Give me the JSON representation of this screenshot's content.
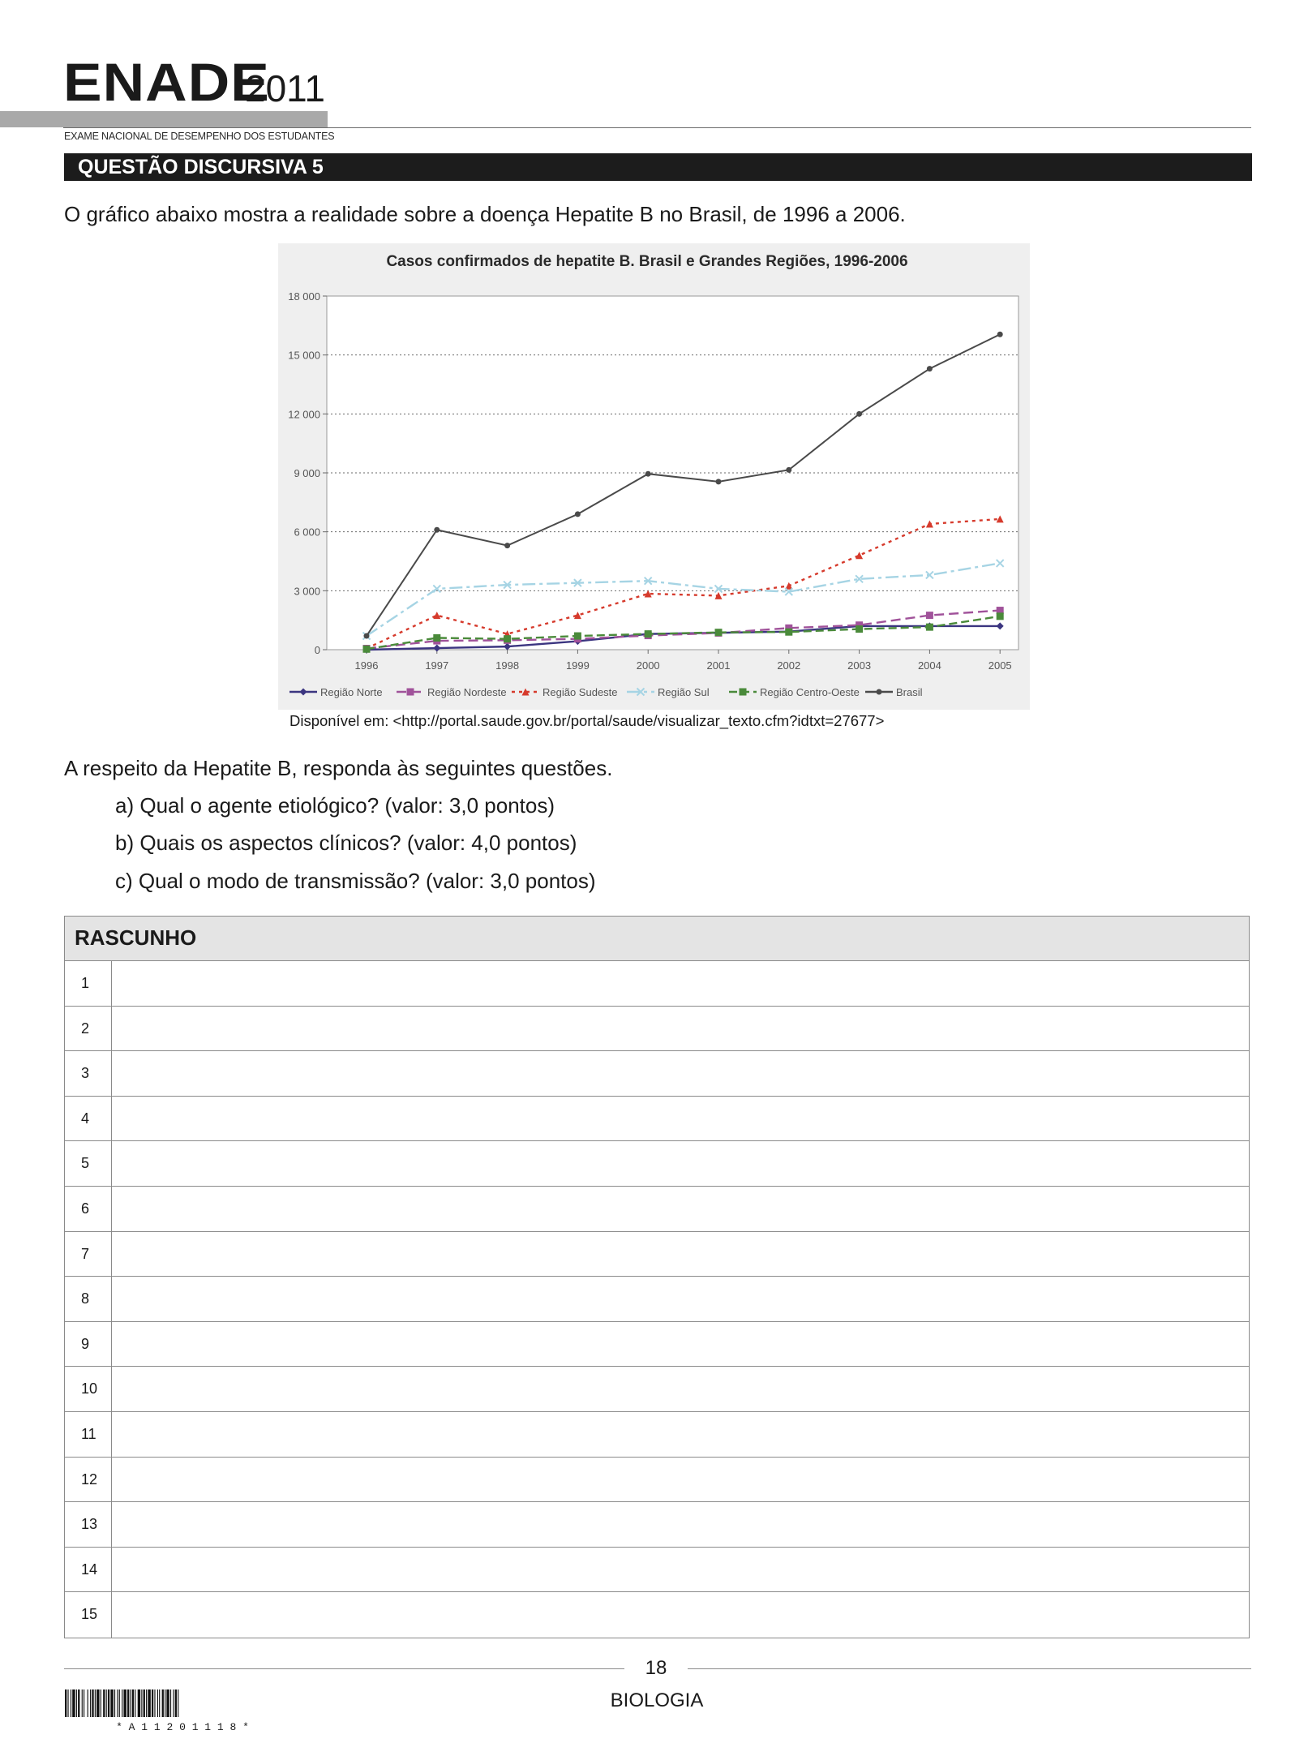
{
  "header": {
    "logo_word": "ENADE",
    "logo_year": "2011",
    "subtitle": "EXAME NACIONAL DE DESEMPENHO DOS ESTUDANTES",
    "question_title": "QUESTÃO DISCURSIVA 5"
  },
  "content": {
    "intro": "O gráfico abaixo mostra a realidade sobre a doença Hepatite B no Brasil, de 1996 a 2006.",
    "source": "Disponível em: <http://portal.saude.gov.br/portal/saude/visualizar_texto.cfm?idtxt=27677>",
    "prompt": "A respeito da Hepatite B, responda às seguintes questões.",
    "questions": [
      "a) Qual o agente etiológico? (valor: 3,0 pontos)",
      "b) Quais os aspectos clínicos? (valor: 4,0 pontos)",
      "c) Qual o modo de transmissão? (valor: 3,0 pontos)"
    ]
  },
  "chart_data": {
    "type": "line",
    "title": "Casos confirmados de hepatite B. Brasil e Grandes Regiões, 1996-2006",
    "xlabel": "",
    "ylabel": "",
    "categories": [
      "1996",
      "1997",
      "1998",
      "1999",
      "2000",
      "2001",
      "2002",
      "2003",
      "2004",
      "2005"
    ],
    "ylim": [
      0,
      18000
    ],
    "yticks": [
      0,
      3000,
      6000,
      9000,
      12000,
      15000,
      18000
    ],
    "ytick_labels": [
      "0",
      "3 000",
      "6 000",
      "9 000",
      "12 000",
      "15 000",
      "18 000"
    ],
    "grid": true,
    "legend_position": "bottom",
    "series": [
      {
        "name": "Região Norte",
        "color": "#3b3580",
        "dash": "",
        "marker": "diamond",
        "values": [
          0,
          80,
          160,
          430,
          800,
          860,
          920,
          1200,
          1200,
          1200
        ]
      },
      {
        "name": "Região Nordeste",
        "color": "#a0529a",
        "dash": "12,6",
        "marker": "square",
        "values": [
          60,
          450,
          480,
          550,
          720,
          850,
          1100,
          1250,
          1750,
          2000
        ]
      },
      {
        "name": "Região Sudeste",
        "color": "#d63a2c",
        "dash": "4,5",
        "marker": "triangle",
        "values": [
          60,
          1750,
          800,
          1750,
          2850,
          2750,
          3250,
          4800,
          6400,
          6650
        ]
      },
      {
        "name": "Região Sul",
        "color": "#a6d4e4",
        "dash": "16,5,4,5",
        "marker": "x",
        "values": [
          700,
          3100,
          3300,
          3400,
          3500,
          3100,
          2950,
          3600,
          3800,
          4400
        ]
      },
      {
        "name": "Região Centro-Oeste",
        "color": "#4a8a3a",
        "dash": "10,5",
        "marker": "square",
        "values": [
          30,
          600,
          550,
          700,
          800,
          880,
          900,
          1050,
          1150,
          1700
        ]
      },
      {
        "name": "Brasil",
        "color": "#4a4a4a",
        "dash": "",
        "marker": "circle",
        "values": [
          700,
          6100,
          5300,
          6900,
          8950,
          8550,
          9150,
          12000,
          14300,
          16050
        ]
      }
    ]
  },
  "rascunho": {
    "title": "RASCUNHO",
    "lines": [
      "1",
      "2",
      "3",
      "4",
      "5",
      "6",
      "7",
      "8",
      "9",
      "10",
      "11",
      "12",
      "13",
      "14",
      "15"
    ]
  },
  "footer": {
    "page_number": "18",
    "discipline": "BIOLOGIA",
    "barcode_text": "* A 1 1 2 0 1 1 1 8 *"
  }
}
